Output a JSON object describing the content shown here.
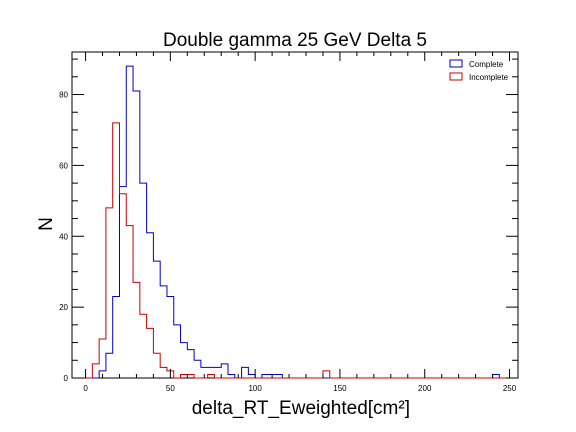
{
  "chart_data": {
    "type": "histogram",
    "title": "Double gamma 25 GeV Delta 5",
    "xlabel": "delta_RT_Eweighted[cm²]",
    "ylabel": "N",
    "xlim": [
      -8,
      255
    ],
    "ylim": [
      0,
      92
    ],
    "x_ticks": [
      0,
      50,
      100,
      150,
      200,
      250
    ],
    "y_ticks": [
      0,
      20,
      40,
      60,
      80
    ],
    "bin_width": 4,
    "x_start": 0,
    "legend_position": "top-right",
    "series": [
      {
        "name": "Complete",
        "color": "#0000c8",
        "values": [
          0,
          0,
          2,
          7,
          23,
          54,
          88,
          81,
          55,
          41,
          33,
          26,
          23,
          15,
          10,
          8,
          5,
          3,
          3,
          3,
          4,
          1,
          0,
          3,
          1,
          0,
          1,
          1,
          1,
          0,
          0,
          0,
          0,
          0,
          0,
          0,
          0,
          0,
          0,
          0,
          0,
          0,
          0,
          0,
          0,
          0,
          0,
          0,
          0,
          0,
          0,
          0,
          0,
          0,
          0,
          0,
          0,
          0,
          0,
          0,
          1,
          0
        ]
      },
      {
        "name": "Incomplete",
        "color": "#c80000",
        "values": [
          0,
          4,
          11,
          48,
          72,
          52,
          43,
          27,
          18,
          14,
          7,
          3,
          2,
          0,
          1,
          1,
          0,
          0,
          1,
          0,
          0,
          0,
          0,
          0,
          0,
          0,
          0,
          0,
          0,
          0,
          0,
          0,
          0,
          0,
          0,
          2,
          0,
          0,
          0,
          0,
          0,
          0,
          0,
          0,
          0,
          0,
          0,
          0,
          0,
          0,
          0,
          0,
          0,
          0,
          0,
          0,
          0,
          0,
          0,
          0,
          0,
          0
        ]
      }
    ]
  }
}
